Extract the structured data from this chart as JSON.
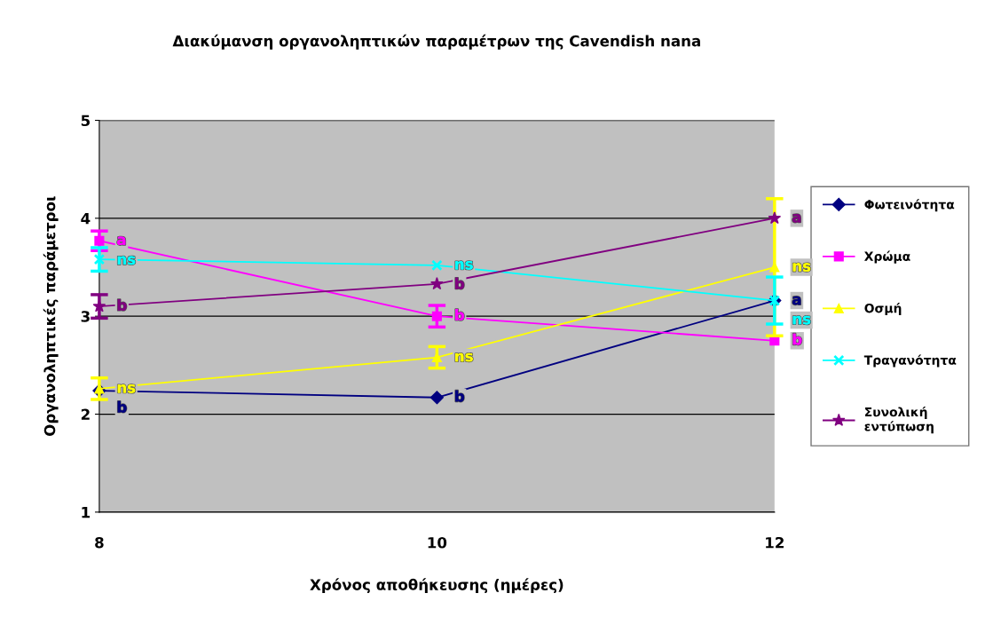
{
  "chart_data": {
    "type": "line",
    "title": "Διακύμανση οργανοληπτικών παραμέτρων της Cavendish nana",
    "xlabel": "Χρόνος αποθήκευσης (ημέρες)",
    "ylabel": "Οργανοληπτικές παράμετροι",
    "x": [
      8,
      10,
      12
    ],
    "xlim": [
      8,
      12
    ],
    "xticks": [
      8,
      10,
      12
    ],
    "ylim": [
      1,
      5
    ],
    "yticks": [
      1,
      2,
      3,
      4,
      5
    ],
    "grid": "y",
    "legend": "right",
    "series": [
      {
        "name": "Φωτεινότητα",
        "color": "#000080",
        "marker": "diamond",
        "values": [
          2.24,
          2.17,
          3.16
        ],
        "value_labels": [
          "b",
          "b",
          "a"
        ]
      },
      {
        "name": "Χρώμα",
        "color": "#ff00ff",
        "marker": "square",
        "values": [
          3.77,
          3.0,
          2.75
        ],
        "errors": [
          0.1,
          0.11,
          null
        ],
        "value_labels": [
          "a",
          "b",
          "b"
        ]
      },
      {
        "name": "Οσμή",
        "color": "#ffff00",
        "marker": "triangle",
        "values": [
          2.26,
          2.58,
          3.5
        ],
        "errors": [
          0.11,
          0.11,
          0.7
        ],
        "value_labels": [
          "ns",
          "ns",
          "ns"
        ]
      },
      {
        "name": "Τραγανότητα",
        "color": "#00ffff",
        "marker": "cross",
        "values": [
          3.58,
          3.52,
          3.16
        ],
        "errors": [
          0.12,
          null,
          0.24
        ],
        "value_labels": [
          "ns",
          "ns",
          "ns"
        ]
      },
      {
        "name": "Συνολική\nεντύπωση",
        "color": "#800080",
        "marker": "star",
        "values": [
          3.1,
          3.33,
          4.0
        ],
        "errors": [
          0.12,
          null,
          null
        ],
        "value_labels": [
          "b",
          "b",
          "a"
        ]
      }
    ]
  }
}
